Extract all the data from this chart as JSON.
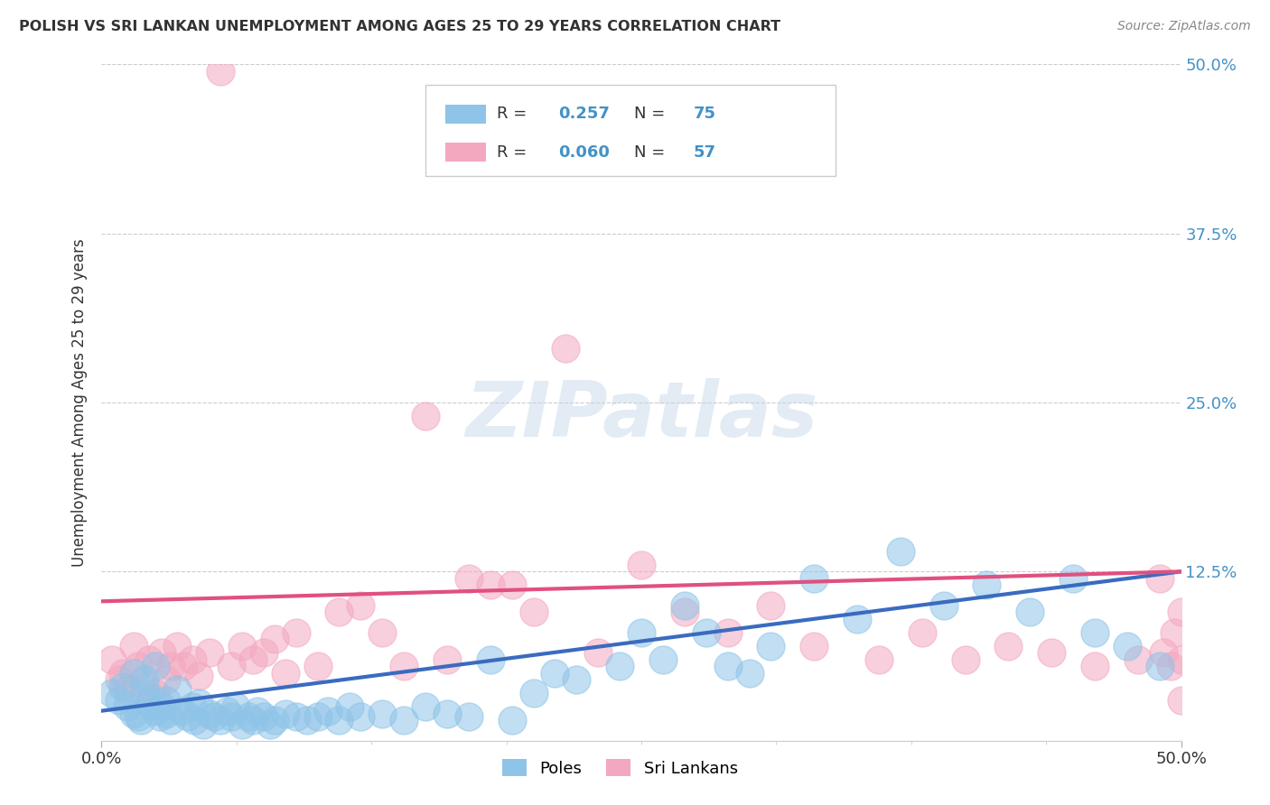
{
  "title": "POLISH VS SRI LANKAN UNEMPLOYMENT AMONG AGES 25 TO 29 YEARS CORRELATION CHART",
  "source": "Source: ZipAtlas.com",
  "ylabel": "Unemployment Among Ages 25 to 29 years",
  "xlim": [
    0,
    0.5
  ],
  "ylim": [
    0,
    0.5
  ],
  "ytick_values": [
    0,
    0.125,
    0.25,
    0.375,
    0.5
  ],
  "ytick_labels": [
    "",
    "12.5%",
    "25.0%",
    "37.5%",
    "50.0%"
  ],
  "xtick_values": [
    0,
    0.5
  ],
  "xtick_labels": [
    "0.0%",
    "50.0%"
  ],
  "poles_color": "#8ec4e8",
  "poles_line_color": "#3a6bbf",
  "srilankans_color": "#f4a8c0",
  "srilankans_line_color": "#e05080",
  "poles_R": 0.257,
  "poles_N": 75,
  "srilankans_R": 0.06,
  "srilankans_N": 57,
  "legend_label_poles": "Poles",
  "legend_label_srilankans": "Sri Lankans",
  "watermark_text": "ZIPatlas",
  "background_color": "#ffffff",
  "poles_line_x0": 0.0,
  "poles_line_y0": 0.022,
  "poles_line_x1": 0.5,
  "poles_line_y1": 0.125,
  "srl_line_x0": 0.0,
  "srl_line_y0": 0.103,
  "srl_line_x1": 0.5,
  "srl_line_y1": 0.125,
  "poles_x": [
    0.005,
    0.008,
    0.01,
    0.012,
    0.015,
    0.015,
    0.017,
    0.018,
    0.02,
    0.02,
    0.022,
    0.023,
    0.025,
    0.025,
    0.027,
    0.028,
    0.03,
    0.03,
    0.032,
    0.035,
    0.037,
    0.04,
    0.042,
    0.043,
    0.045,
    0.047,
    0.05,
    0.052,
    0.055,
    0.058,
    0.06,
    0.062,
    0.065,
    0.068,
    0.07,
    0.072,
    0.075,
    0.078,
    0.08,
    0.085,
    0.09,
    0.095,
    0.1,
    0.105,
    0.11,
    0.115,
    0.12,
    0.13,
    0.14,
    0.15,
    0.16,
    0.17,
    0.18,
    0.19,
    0.2,
    0.21,
    0.22,
    0.24,
    0.25,
    0.26,
    0.27,
    0.28,
    0.29,
    0.3,
    0.31,
    0.33,
    0.35,
    0.37,
    0.39,
    0.41,
    0.43,
    0.45,
    0.46,
    0.475,
    0.49
  ],
  "poles_y": [
    0.035,
    0.03,
    0.04,
    0.025,
    0.02,
    0.05,
    0.018,
    0.015,
    0.035,
    0.045,
    0.028,
    0.032,
    0.022,
    0.055,
    0.018,
    0.025,
    0.03,
    0.02,
    0.015,
    0.038,
    0.022,
    0.018,
    0.025,
    0.015,
    0.028,
    0.012,
    0.02,
    0.018,
    0.015,
    0.022,
    0.018,
    0.025,
    0.012,
    0.018,
    0.015,
    0.022,
    0.018,
    0.012,
    0.015,
    0.02,
    0.018,
    0.015,
    0.018,
    0.022,
    0.015,
    0.025,
    0.018,
    0.02,
    0.015,
    0.025,
    0.02,
    0.018,
    0.06,
    0.015,
    0.035,
    0.05,
    0.045,
    0.055,
    0.08,
    0.06,
    0.1,
    0.08,
    0.055,
    0.05,
    0.07,
    0.12,
    0.09,
    0.14,
    0.1,
    0.115,
    0.095,
    0.12,
    0.08,
    0.07,
    0.055
  ],
  "srl_x": [
    0.005,
    0.008,
    0.01,
    0.012,
    0.015,
    0.017,
    0.02,
    0.022,
    0.025,
    0.028,
    0.03,
    0.032,
    0.035,
    0.038,
    0.042,
    0.045,
    0.05,
    0.055,
    0.06,
    0.065,
    0.07,
    0.075,
    0.08,
    0.085,
    0.09,
    0.1,
    0.11,
    0.12,
    0.13,
    0.14,
    0.15,
    0.16,
    0.17,
    0.18,
    0.19,
    0.2,
    0.215,
    0.23,
    0.25,
    0.27,
    0.29,
    0.31,
    0.33,
    0.36,
    0.38,
    0.4,
    0.42,
    0.44,
    0.46,
    0.48,
    0.49,
    0.492,
    0.495,
    0.497,
    0.5,
    0.5,
    0.5
  ],
  "srl_y": [
    0.06,
    0.045,
    0.05,
    0.038,
    0.07,
    0.055,
    0.04,
    0.06,
    0.035,
    0.065,
    0.045,
    0.055,
    0.07,
    0.055,
    0.06,
    0.048,
    0.065,
    0.495,
    0.055,
    0.07,
    0.06,
    0.065,
    0.075,
    0.05,
    0.08,
    0.055,
    0.095,
    0.1,
    0.08,
    0.055,
    0.24,
    0.06,
    0.12,
    0.115,
    0.115,
    0.095,
    0.29,
    0.065,
    0.13,
    0.095,
    0.08,
    0.1,
    0.07,
    0.06,
    0.08,
    0.06,
    0.07,
    0.065,
    0.055,
    0.06,
    0.12,
    0.065,
    0.055,
    0.08,
    0.095,
    0.06,
    0.03
  ]
}
